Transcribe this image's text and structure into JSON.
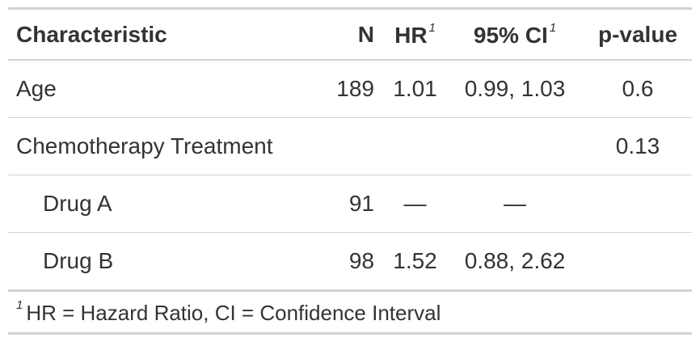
{
  "table": {
    "header": [
      {
        "text": "Characteristic"
      },
      {
        "text": "N"
      },
      {
        "text": "HR",
        "mark": "1"
      },
      {
        "text": "95% CI",
        "mark": "1"
      },
      {
        "text": "p-value"
      }
    ],
    "rows": [
      {
        "level": 0,
        "cells": [
          "Age",
          "189",
          "1.01",
          "0.99, 1.03",
          "0.6"
        ]
      },
      {
        "level": 0,
        "cells": [
          "Chemotherapy Treatment",
          null,
          null,
          null,
          "0.13"
        ]
      },
      {
        "level": 1,
        "cells": [
          "Drug A",
          "91",
          "—",
          "—",
          null
        ]
      },
      {
        "level": 1,
        "cells": [
          "Drug B",
          "98",
          "1.52",
          "0.88, 2.62",
          null
        ]
      }
    ],
    "footnote": {
      "mark": "1",
      "text": "HR = Hazard Ratio, CI = Confidence Interval"
    }
  }
}
